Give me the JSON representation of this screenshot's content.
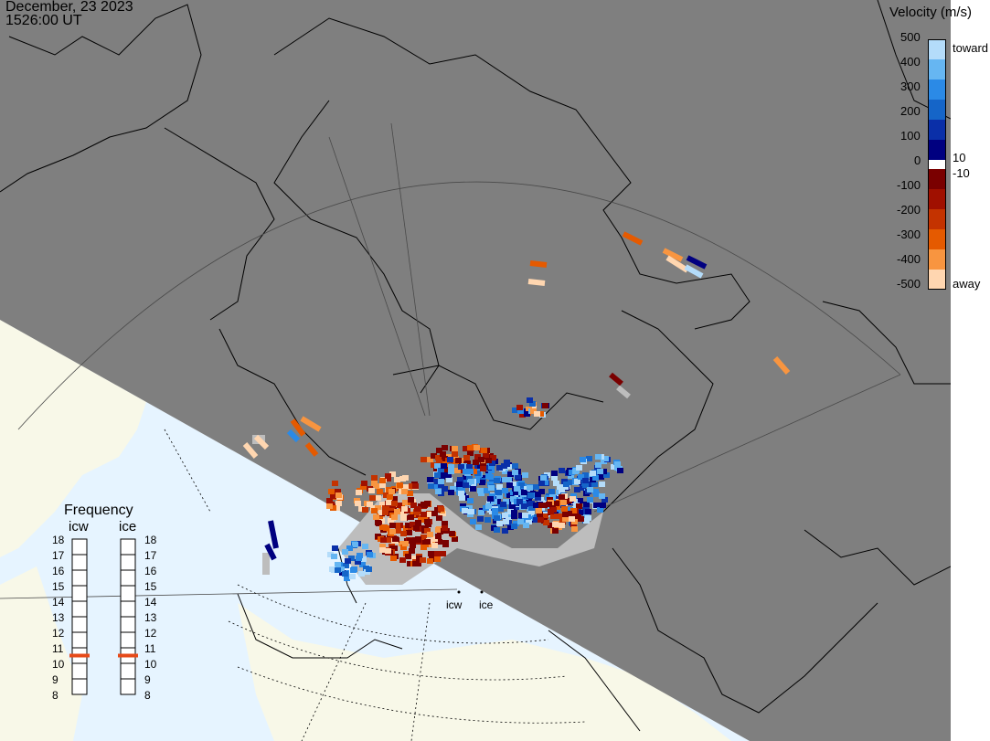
{
  "header": {
    "date": "December, 23 2023",
    "time": "1526:00 UT"
  },
  "legend": {
    "title": "Velocity (m/s)",
    "ticks": [
      "500",
      "400",
      "300",
      "200",
      "100",
      "10",
      "0",
      "-10",
      "-100",
      "-200",
      "-300",
      "-400",
      "-500"
    ],
    "toward_label": "toward",
    "away_label": "away",
    "colors_toward": [
      "#000080",
      "#0a2fa8",
      "#1565c8",
      "#2b8ae6",
      "#66b6f2",
      "#b4dcfa"
    ],
    "colors_away": [
      "#7a0000",
      "#a01000",
      "#c43300",
      "#e55a00",
      "#f89540",
      "#ffd6b0"
    ],
    "colors": {
      "ground_scatter": "#bdbdbd",
      "night": "#7f7f7f",
      "day_land": "#f8f8e8",
      "day_ocean": "#e6f4ff"
    }
  },
  "frequency": {
    "title": "Frequency",
    "radars": [
      "icw",
      "ice"
    ],
    "ticks": [
      "18",
      "17",
      "16",
      "15",
      "14",
      "13",
      "12",
      "11",
      "10",
      "9",
      "8"
    ],
    "values": [
      10.5,
      10.5
    ],
    "marker_color": "#e64a19"
  },
  "sites": [
    "icw",
    "ice"
  ]
}
